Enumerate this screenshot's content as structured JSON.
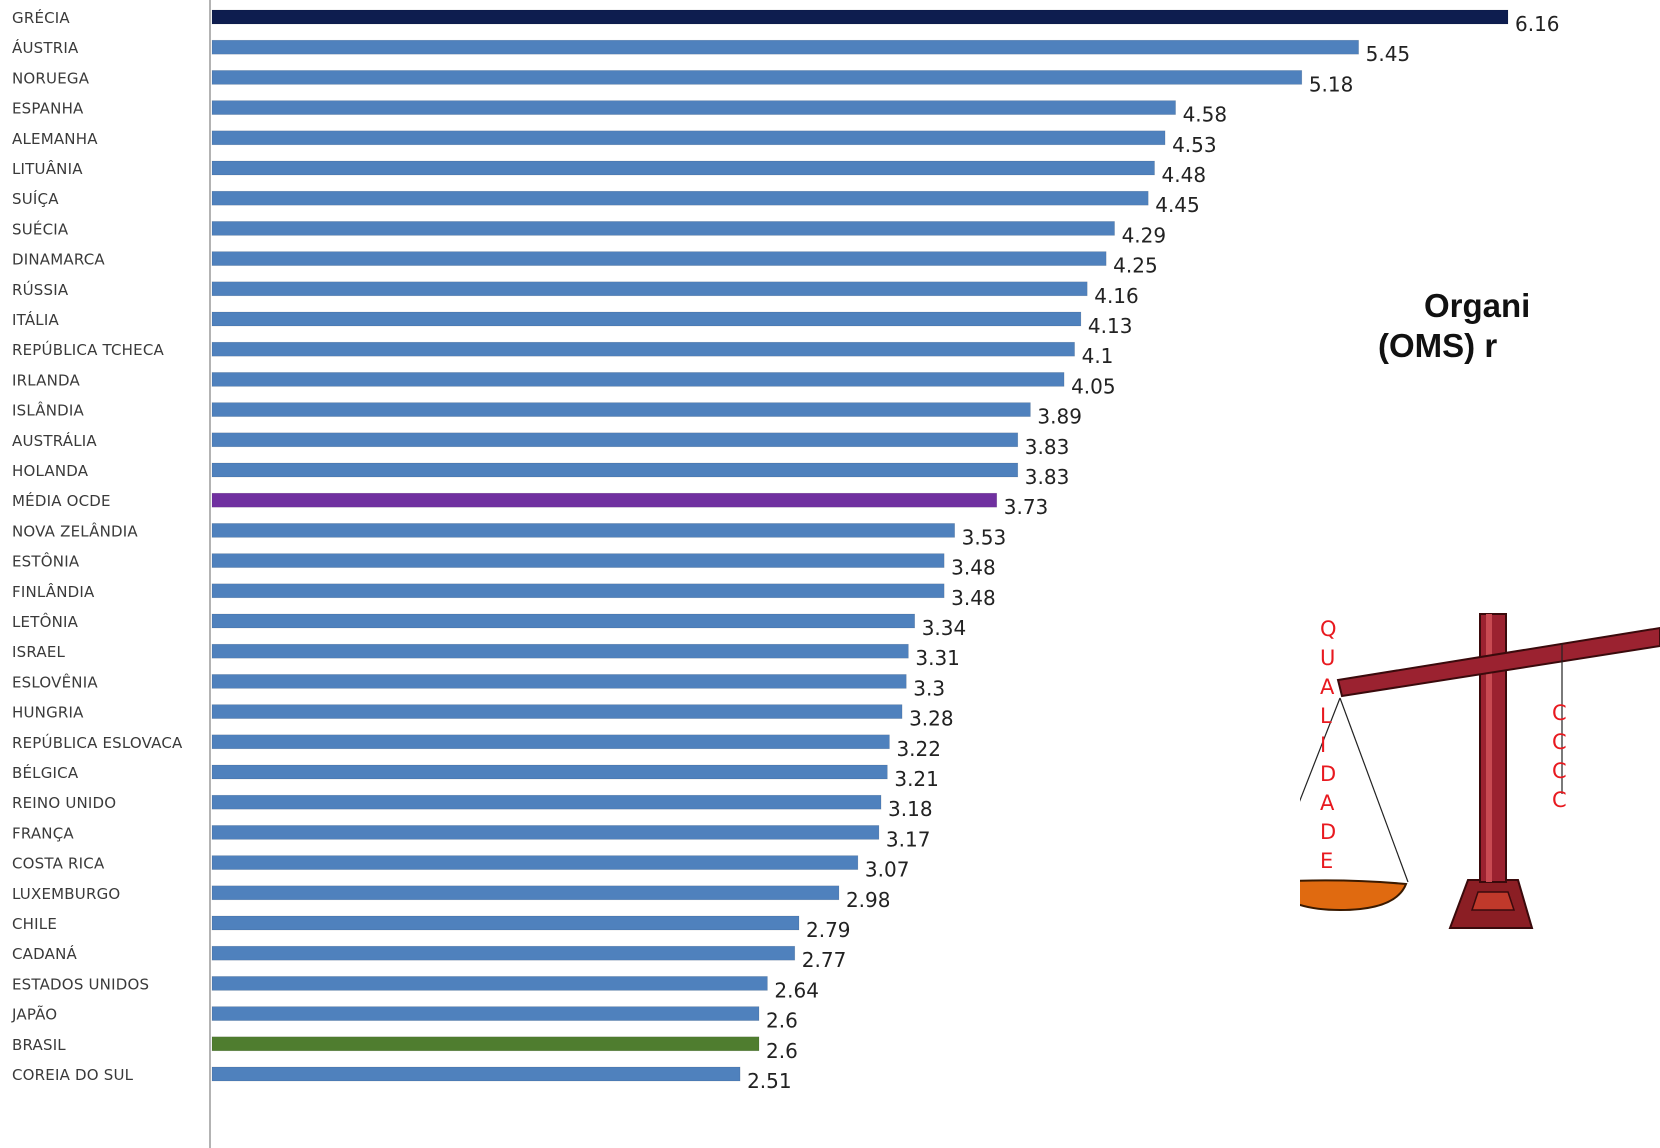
{
  "chart_data": {
    "type": "bar",
    "orientation": "horizontal",
    "categories": [
      "GRÉCIA",
      "ÁUSTRIA",
      "NORUEGA",
      "ESPANHA",
      "ALEMANHA",
      "LITUÂNIA",
      "SUÍÇA",
      "SUÉCIA",
      "DINAMARCA",
      "RÚSSIA",
      "ITÁLIA",
      "REPÚBLICA TCHECA",
      "IRLANDA",
      "ISLÂNDIA",
      "AUSTRÁLIA",
      "HOLANDA",
      "MÉDIA OCDE",
      "NOVA ZELÂNDIA",
      "ESTÔNIA",
      "FINLÂNDIA",
      "LETÔNIA",
      "ISRAEL",
      "ESLOVÊNIA",
      "HUNGRIA",
      "REPÚBLICA ESLOVACA",
      "BÉLGICA",
      "REINO UNIDO",
      "FRANÇA",
      "COSTA RICA",
      "LUXEMBURGO",
      "CHILE",
      "CADANÁ",
      "ESTADOS UNIDOS",
      "JAPÃO",
      "BRASIL",
      "COREIA DO SUL"
    ],
    "values": [
      6.16,
      5.45,
      5.18,
      4.58,
      4.53,
      4.48,
      4.45,
      4.29,
      4.25,
      4.16,
      4.13,
      4.1,
      4.05,
      3.89,
      3.83,
      3.83,
      3.73,
      3.53,
      3.48,
      3.48,
      3.34,
      3.31,
      3.3,
      3.28,
      3.22,
      3.21,
      3.18,
      3.17,
      3.07,
      2.98,
      2.79,
      2.77,
      2.64,
      2.6,
      2.6,
      2.51
    ],
    "value_labels": [
      "6.16",
      "5.45",
      "5.18",
      "4.58",
      "4.53",
      "4.48",
      "4.45",
      "4.29",
      "4.25",
      "4.16",
      "4.13",
      "4.1",
      "4.05",
      "3.89",
      "3.83",
      "3.83",
      "3.73",
      "3.53",
      "3.48",
      "3.48",
      "3.34",
      "3.31",
      "3.3",
      "3.28",
      "3.22",
      "3.21",
      "3.18",
      "3.17",
      "3.07",
      "2.98",
      "2.79",
      "2.77",
      "2.64",
      "2.6",
      "2.6",
      "2.51"
    ],
    "xlim": [
      0,
      6.16
    ],
    "grid": false,
    "legend": "none",
    "colors": {
      "default": "#4f81bd",
      "GRÉCIA": "#0e1d4f",
      "MÉDIA OCDE": "#7030a0",
      "BRASIL": "#4f7d2f"
    },
    "highlight_label_colors": {
      "MÉDIA OCDE": "#7030a0",
      "BRASIL": "#4f7d2f"
    }
  },
  "headline": {
    "line1": "Organi",
    "line2": "(OMS) r"
  },
  "scale_illustration": {
    "icon": "balance-scale-icon",
    "left_letters": [
      "Q",
      "U",
      "A",
      "L",
      "I",
      "D",
      "A",
      "D",
      "E"
    ],
    "right_letters": [
      "C",
      "C",
      "C",
      "C"
    ],
    "colors": {
      "beam": "#8b1e24",
      "letters": "#e8191f",
      "pan": "#e06a10"
    }
  }
}
